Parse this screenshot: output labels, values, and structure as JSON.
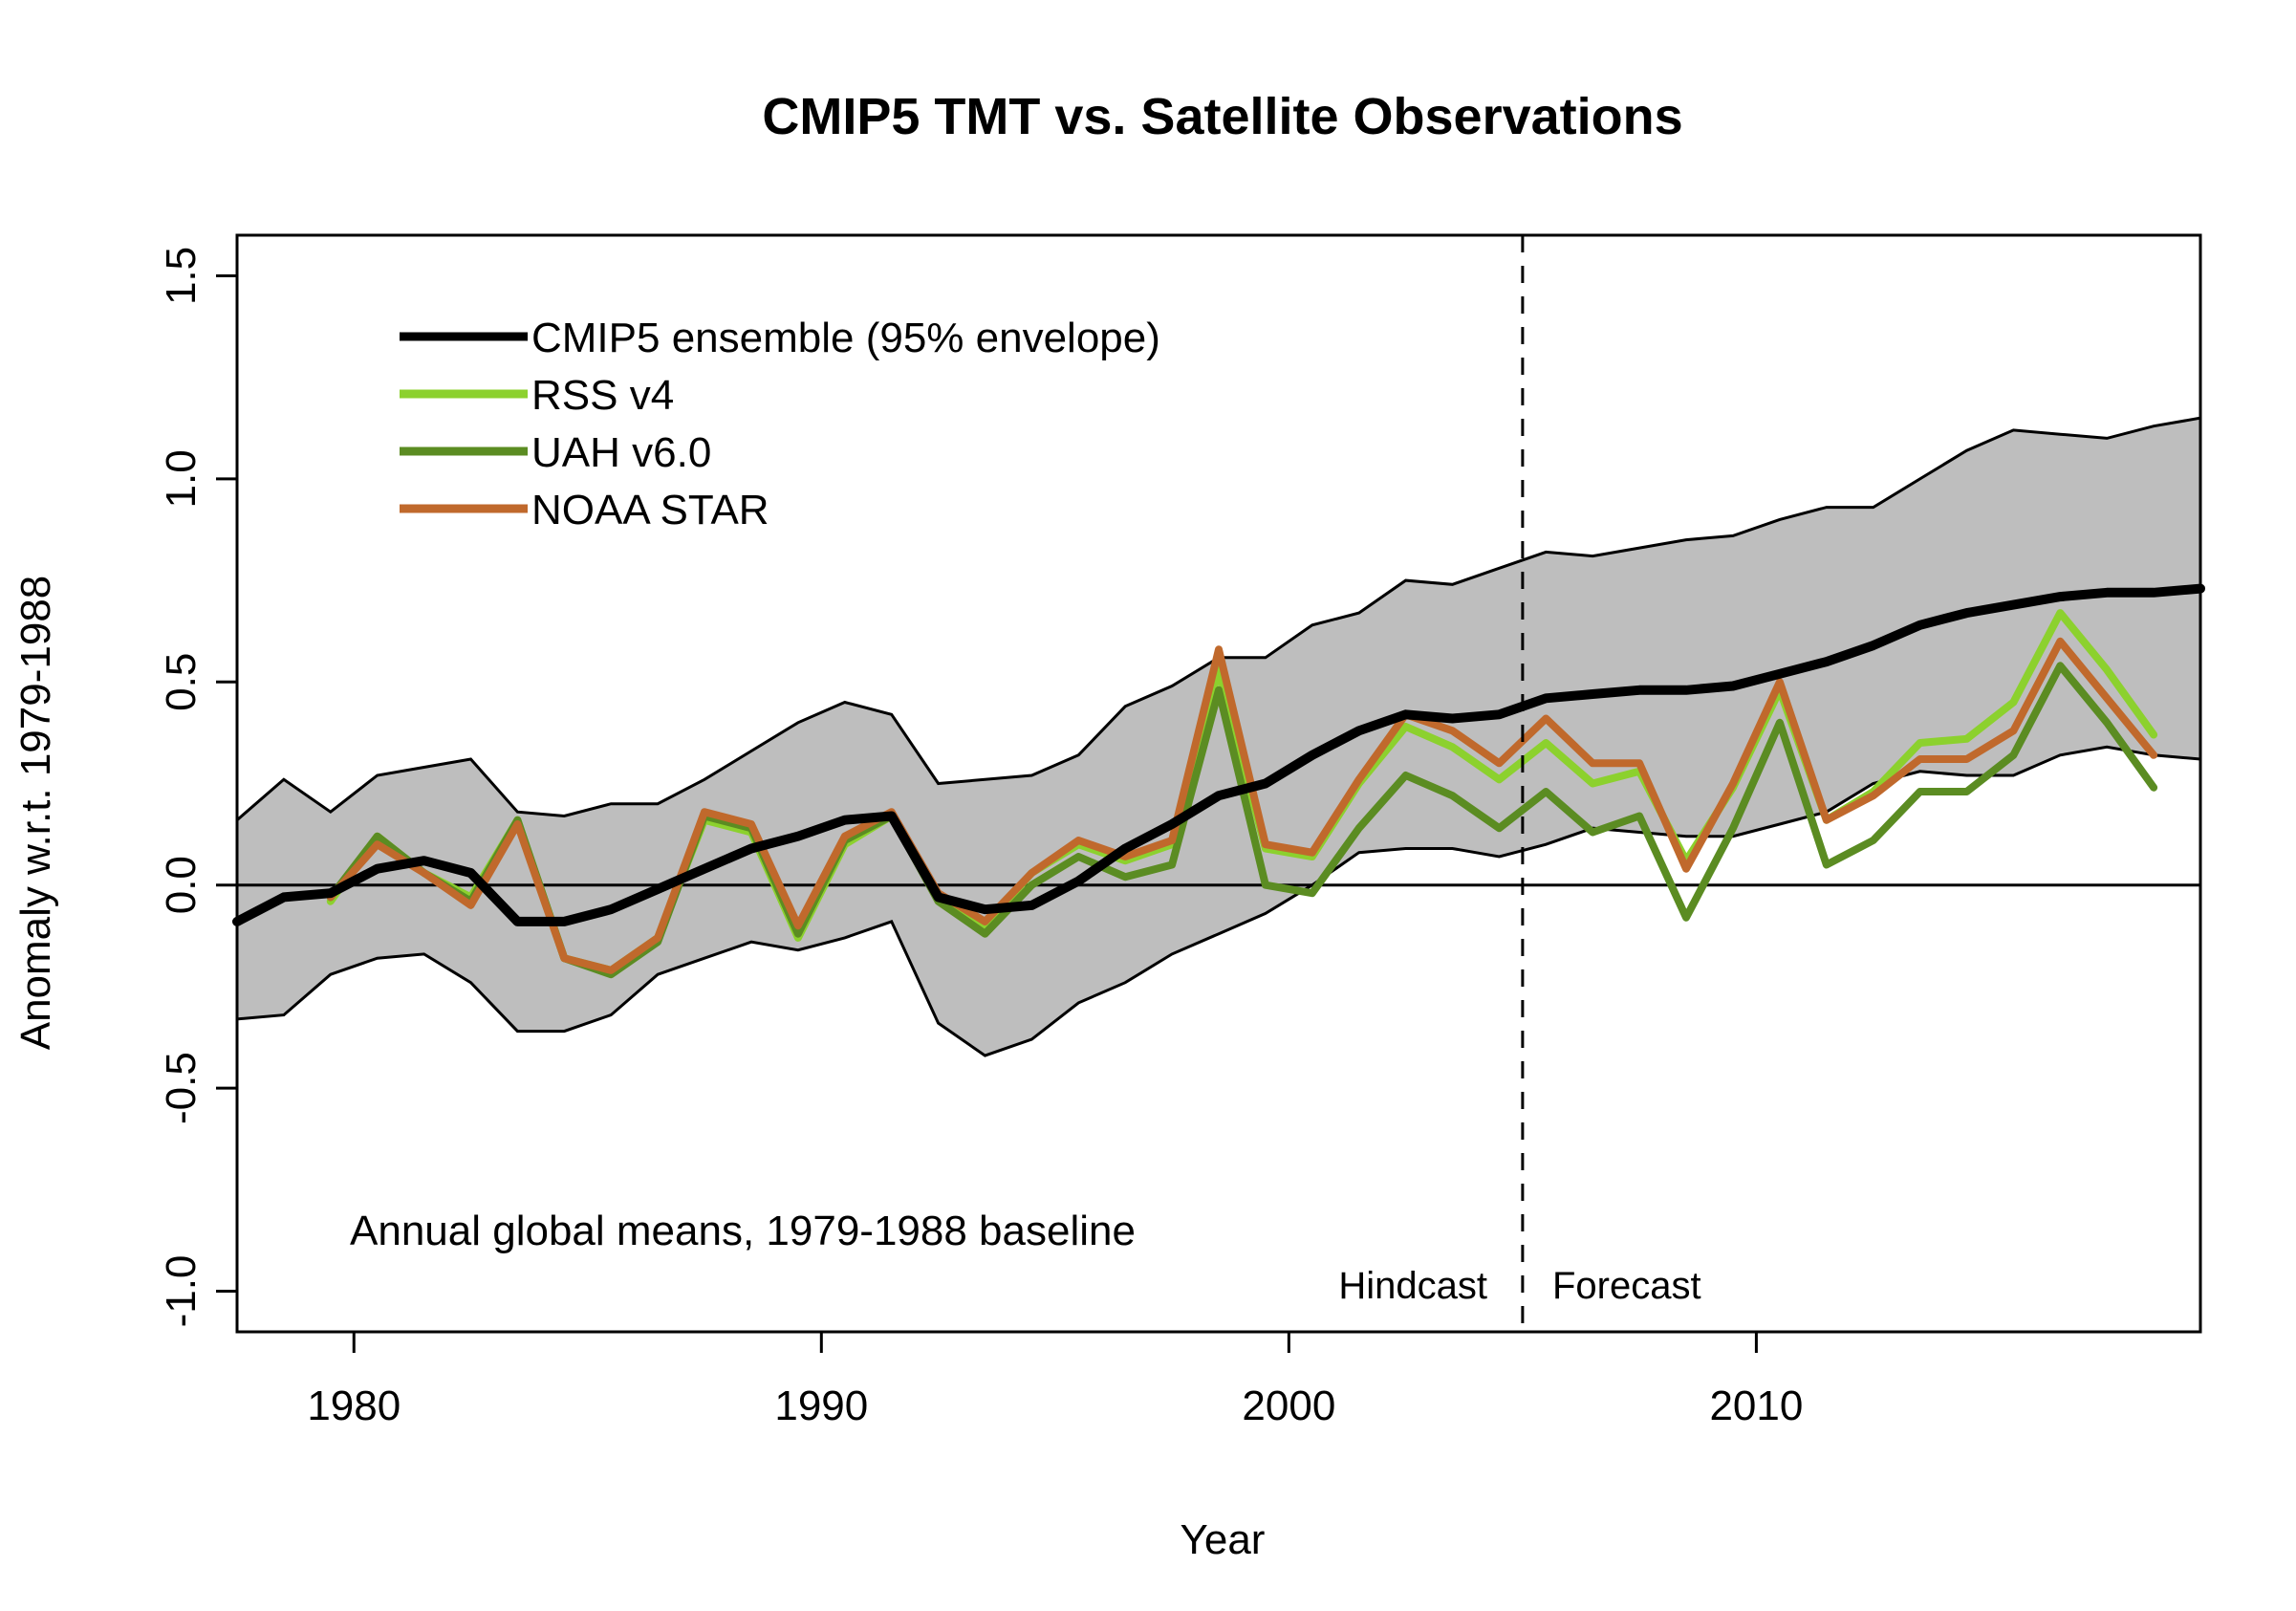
{
  "chart_data": {
    "type": "line",
    "title": "CMIP5 TMT vs. Satellite Observations",
    "xlabel": "Year",
    "ylabel": "Anomaly w.r.t. 1979-1988",
    "xlim": [
      1977.5,
      2019.5
    ],
    "ylim": [
      -1.1,
      1.6
    ],
    "x_ticks": [
      1980,
      1990,
      2000,
      2010
    ],
    "x_tick_labels": [
      "1980",
      "1990",
      "2000",
      "2010"
    ],
    "y_ticks": [
      -1.0,
      -0.5,
      0.0,
      0.5,
      1.0,
      1.5
    ],
    "y_tick_labels": [
      "-1.0",
      "-0.5",
      "0.0",
      "0.5",
      "1.0",
      "1.5"
    ],
    "zero_line": 0.0,
    "divider": {
      "x": 2005.0,
      "style": "dashed",
      "left_label": "Hindcast",
      "right_label": "Forecast"
    },
    "annotation": "Annual global means, 1979-1988 baseline",
    "legend_position": "top-left",
    "envelope": {
      "name": "95% envelope",
      "color": "#bebebe",
      "x": [
        1977.5,
        1978.5,
        1979.5,
        1980.5,
        1981.5,
        1982.5,
        1983.5,
        1984.5,
        1985.5,
        1986.5,
        1987.5,
        1988.5,
        1989.5,
        1990.5,
        1991.5,
        1992.5,
        1993.5,
        1994.5,
        1995.5,
        1996.5,
        1997.5,
        1998.5,
        1999.5,
        2000.5,
        2001.5,
        2002.5,
        2003.5,
        2004.5,
        2005.5,
        2006.5,
        2007.5,
        2008.5,
        2009.5,
        2010.5,
        2011.5,
        2012.5,
        2013.5,
        2014.5,
        2015.5,
        2016.5,
        2017.5,
        2018.5,
        2019.5
      ],
      "upper": [
        0.16,
        0.26,
        0.18,
        0.27,
        0.29,
        0.31,
        0.18,
        0.17,
        0.2,
        0.2,
        0.26,
        0.33,
        0.4,
        0.45,
        0.42,
        0.25,
        0.26,
        0.27,
        0.32,
        0.44,
        0.49,
        0.56,
        0.56,
        0.64,
        0.67,
        0.75,
        0.74,
        0.78,
        0.82,
        0.81,
        0.83,
        0.85,
        0.86,
        0.9,
        0.93,
        0.93,
        1.0,
        1.07,
        1.12,
        1.11,
        1.1,
        1.13,
        1.15
      ],
      "lower": [
        -0.33,
        -0.32,
        -0.22,
        -0.18,
        -0.17,
        -0.24,
        -0.36,
        -0.36,
        -0.32,
        -0.22,
        -0.18,
        -0.14,
        -0.16,
        -0.13,
        -0.09,
        -0.34,
        -0.42,
        -0.38,
        -0.29,
        -0.24,
        -0.17,
        -0.12,
        -0.07,
        0.0,
        0.08,
        0.09,
        0.09,
        0.07,
        0.1,
        0.14,
        0.13,
        0.12,
        0.12,
        0.15,
        0.18,
        0.25,
        0.28,
        0.27,
        0.27,
        0.32,
        0.34,
        0.32,
        0.31
      ]
    },
    "series": [
      {
        "name": "CMIP5 ensemble (95% envelope)",
        "color": "#000000",
        "x": [
          1977.5,
          1978.5,
          1979.5,
          1980.5,
          1981.5,
          1982.5,
          1983.5,
          1984.5,
          1985.5,
          1986.5,
          1987.5,
          1988.5,
          1989.5,
          1990.5,
          1991.5,
          1992.5,
          1993.5,
          1994.5,
          1995.5,
          1996.5,
          1997.5,
          1998.5,
          1999.5,
          2000.5,
          2001.5,
          2002.5,
          2003.5,
          2004.5,
          2005.5,
          2006.5,
          2007.5,
          2008.5,
          2009.5,
          2010.5,
          2011.5,
          2012.5,
          2013.5,
          2014.5,
          2015.5,
          2016.5,
          2017.5,
          2018.5,
          2019.5
        ],
        "values": [
          -0.09,
          -0.03,
          -0.02,
          0.04,
          0.06,
          0.03,
          -0.09,
          -0.09,
          -0.06,
          -0.01,
          0.04,
          0.09,
          0.12,
          0.16,
          0.17,
          -0.03,
          -0.06,
          -0.05,
          0.01,
          0.09,
          0.15,
          0.22,
          0.25,
          0.32,
          0.38,
          0.42,
          0.41,
          0.42,
          0.46,
          0.47,
          0.48,
          0.48,
          0.49,
          0.52,
          0.55,
          0.59,
          0.64,
          0.67,
          0.69,
          0.71,
          0.72,
          0.72,
          0.73
        ]
      },
      {
        "name": "RSS v4",
        "color": "#8cd12e",
        "x": [
          1979.5,
          1980.5,
          1981.5,
          1982.5,
          1983.5,
          1984.5,
          1985.5,
          1986.5,
          1987.5,
          1988.5,
          1989.5,
          1990.5,
          1991.5,
          1992.5,
          1993.5,
          1994.5,
          1995.5,
          1996.5,
          1997.5,
          1998.5,
          1999.5,
          2000.5,
          2001.5,
          2002.5,
          2003.5,
          2004.5,
          2005.5,
          2006.5,
          2007.5,
          2008.5,
          2009.5,
          2010.5,
          2011.5,
          2012.5,
          2013.5,
          2014.5,
          2015.5,
          2016.5,
          2017.5,
          2018.5
        ],
        "values": [
          -0.04,
          0.12,
          0.03,
          -0.03,
          0.16,
          -0.18,
          -0.21,
          -0.13,
          0.16,
          0.13,
          -0.13,
          0.1,
          0.17,
          -0.03,
          -0.1,
          0.03,
          0.1,
          0.06,
          0.1,
          0.53,
          0.09,
          0.07,
          0.25,
          0.39,
          0.34,
          0.26,
          0.35,
          0.25,
          0.28,
          0.06,
          0.24,
          0.48,
          0.16,
          0.23,
          0.35,
          0.36,
          0.45,
          0.67,
          0.53,
          0.37
        ]
      },
      {
        "name": "UAH v6.0",
        "color": "#5b8c22",
        "x": [
          1979.5,
          1980.5,
          1981.5,
          1982.5,
          1983.5,
          1984.5,
          1985.5,
          1986.5,
          1987.5,
          1988.5,
          1989.5,
          1990.5,
          1991.5,
          1992.5,
          1993.5,
          1994.5,
          1995.5,
          1996.5,
          1997.5,
          1998.5,
          1999.5,
          2000.5,
          2001.5,
          2002.5,
          2003.5,
          2004.5,
          2005.5,
          2006.5,
          2007.5,
          2008.5,
          2009.5,
          2010.5,
          2011.5,
          2012.5,
          2013.5,
          2014.5,
          2015.5,
          2016.5,
          2017.5,
          2018.5
        ],
        "values": [
          -0.03,
          0.12,
          0.03,
          -0.04,
          0.16,
          -0.18,
          -0.22,
          -0.14,
          0.17,
          0.14,
          -0.12,
          0.11,
          0.17,
          -0.04,
          -0.12,
          0.0,
          0.07,
          0.02,
          0.05,
          0.48,
          0.0,
          -0.02,
          0.14,
          0.27,
          0.22,
          0.14,
          0.23,
          0.13,
          0.17,
          -0.08,
          0.14,
          0.4,
          0.05,
          0.11,
          0.23,
          0.23,
          0.32,
          0.54,
          0.4,
          0.24
        ]
      },
      {
        "name": "NOAA STAR",
        "color": "#c0692c",
        "x": [
          1979.5,
          1980.5,
          1981.5,
          1982.5,
          1983.5,
          1984.5,
          1985.5,
          1986.5,
          1987.5,
          1988.5,
          1989.5,
          1990.5,
          1991.5,
          1992.5,
          1993.5,
          1994.5,
          1995.5,
          1996.5,
          1997.5,
          1998.5,
          1999.5,
          2000.5,
          2001.5,
          2002.5,
          2003.5,
          2004.5,
          2005.5,
          2006.5,
          2007.5,
          2008.5,
          2009.5,
          2010.5,
          2011.5,
          2012.5,
          2013.5,
          2014.5,
          2015.5,
          2016.5,
          2017.5,
          2018.5
        ],
        "values": [
          -0.03,
          0.1,
          0.03,
          -0.05,
          0.15,
          -0.18,
          -0.21,
          -0.13,
          0.18,
          0.15,
          -0.1,
          0.12,
          0.18,
          -0.02,
          -0.09,
          0.03,
          0.11,
          0.07,
          0.11,
          0.58,
          0.1,
          0.08,
          0.26,
          0.42,
          0.38,
          0.3,
          0.41,
          0.3,
          0.3,
          0.04,
          0.25,
          0.5,
          0.16,
          0.22,
          0.31,
          0.31,
          0.38,
          0.6,
          0.46,
          0.32
        ]
      }
    ]
  }
}
